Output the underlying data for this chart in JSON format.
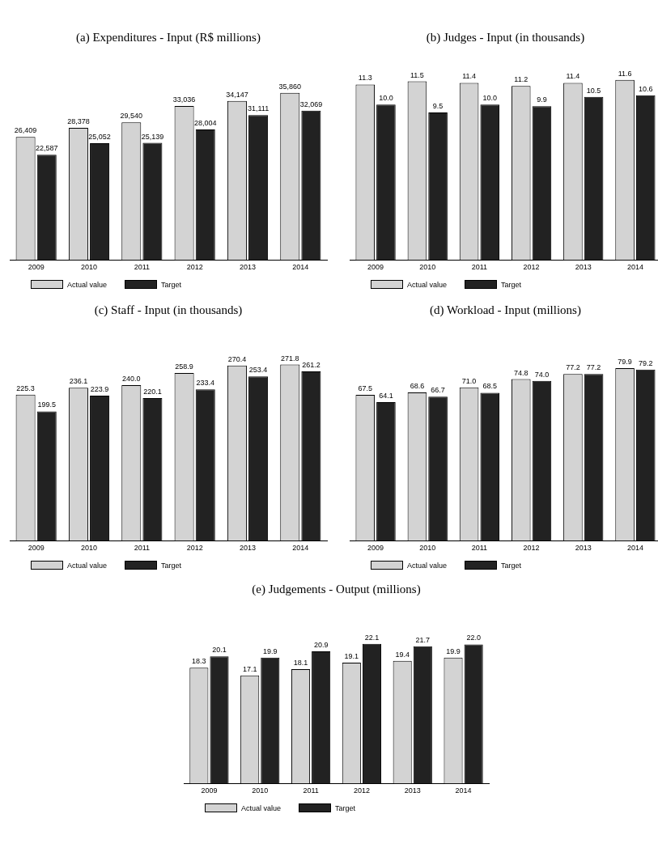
{
  "chart_data": [
    {
      "type": "bar",
      "title": "(a) Expenditures - Input (R$ millions)",
      "categories": [
        "2009",
        "2010",
        "2011",
        "2012",
        "2013",
        "2014"
      ],
      "tick_labels": "x",
      "grid": false,
      "legend": "bottom left",
      "series": [
        {
          "name": "Actual value",
          "color": "#d3d3d3",
          "values": [
            26409,
            28378,
            29540,
            33036,
            34147,
            35860
          ],
          "value_labels": [
            "26,409",
            "28,378",
            "29,540",
            "33,036",
            "34,147",
            "35,860"
          ]
        },
        {
          "name": "Target",
          "color": "#222222",
          "values": [
            22587,
            25052,
            25139,
            28004,
            31111,
            32069
          ],
          "value_labels": [
            "22,587",
            "25,052",
            "25,139",
            "28,004",
            "31,111",
            "32,069"
          ]
        }
      ]
    },
    {
      "type": "bar",
      "title": "(b) Judges - Input (in thousands)",
      "categories": [
        "2009",
        "2010",
        "2011",
        "2012",
        "2013",
        "2014"
      ],
      "tick_labels": "x",
      "grid": false,
      "legend": "bottom left",
      "series": [
        {
          "name": "Actual value",
          "color": "#d3d3d3",
          "values": [
            11.3,
            11.5,
            11.4,
            11.2,
            11.4,
            11.6
          ],
          "value_labels": [
            "11.3",
            "11.5",
            "11.4",
            "11.2",
            "11.4",
            "11.6"
          ]
        },
        {
          "name": "Target",
          "color": "#222222",
          "values": [
            10.0,
            9.5,
            10.0,
            9.9,
            10.5,
            10.6
          ],
          "value_labels": [
            "10.0",
            "9.5",
            "10.0",
            "9.9",
            "10.5",
            "10.6"
          ]
        }
      ]
    },
    {
      "type": "bar",
      "title": "(c) Staff - Input (in thousands)",
      "categories": [
        "2009",
        "2010",
        "2011",
        "2012",
        "2013",
        "2014"
      ],
      "tick_labels": "x",
      "grid": false,
      "legend": "bottom left",
      "series": [
        {
          "name": "Actual value",
          "color": "#d3d3d3",
          "values": [
            225.3,
            236.1,
            240.0,
            258.9,
            270.4,
            271.8
          ],
          "value_labels": [
            "225.3",
            "236.1",
            "240.0",
            "258.9",
            "270.4",
            "271.8"
          ]
        },
        {
          "name": "Target",
          "color": "#222222",
          "values": [
            199.5,
            223.9,
            220.1,
            233.4,
            253.4,
            261.2
          ],
          "value_labels": [
            "199.5",
            "223.9",
            "220.1",
            "233.4",
            "253.4",
            "261.2"
          ]
        }
      ]
    },
    {
      "type": "bar",
      "title": "(d) Workload - Input (millions)",
      "categories": [
        "2009",
        "2010",
        "2011",
        "2012",
        "2013",
        "2014"
      ],
      "tick_labels": "x",
      "grid": false,
      "legend": "bottom left",
      "series": [
        {
          "name": "Actual value",
          "color": "#d3d3d3",
          "values": [
            67.5,
            68.6,
            71.0,
            74.8,
            77.2,
            79.9
          ],
          "value_labels": [
            "67.5",
            "68.6",
            "71.0",
            "74.8",
            "77.2",
            "79.9"
          ]
        },
        {
          "name": "Target",
          "color": "#222222",
          "values": [
            64.1,
            66.7,
            68.5,
            74.0,
            77.2,
            79.2
          ],
          "value_labels": [
            "64.1",
            "66.7",
            "68.5",
            "74.0",
            "77.2",
            "79.2"
          ]
        }
      ]
    },
    {
      "type": "bar",
      "title": "(e) Judgements - Output (millions)",
      "categories": [
        "2009",
        "2010",
        "2011",
        "2012",
        "2013",
        "2014"
      ],
      "tick_labels": "x",
      "grid": false,
      "legend": "bottom left",
      "series": [
        {
          "name": "Actual value",
          "color": "#d3d3d3",
          "values": [
            18.3,
            17.1,
            18.1,
            19.1,
            19.4,
            19.9
          ],
          "value_labels": [
            "18.3",
            "17.1",
            "18.1",
            "19.1",
            "19.4",
            "19.9"
          ]
        },
        {
          "name": "Target",
          "color": "#222222",
          "values": [
            20.1,
            19.9,
            20.9,
            22.1,
            21.7,
            22.0
          ],
          "value_labels": [
            "20.1",
            "19.9",
            "20.9",
            "22.1",
            "21.7",
            "22.0"
          ]
        }
      ]
    }
  ]
}
